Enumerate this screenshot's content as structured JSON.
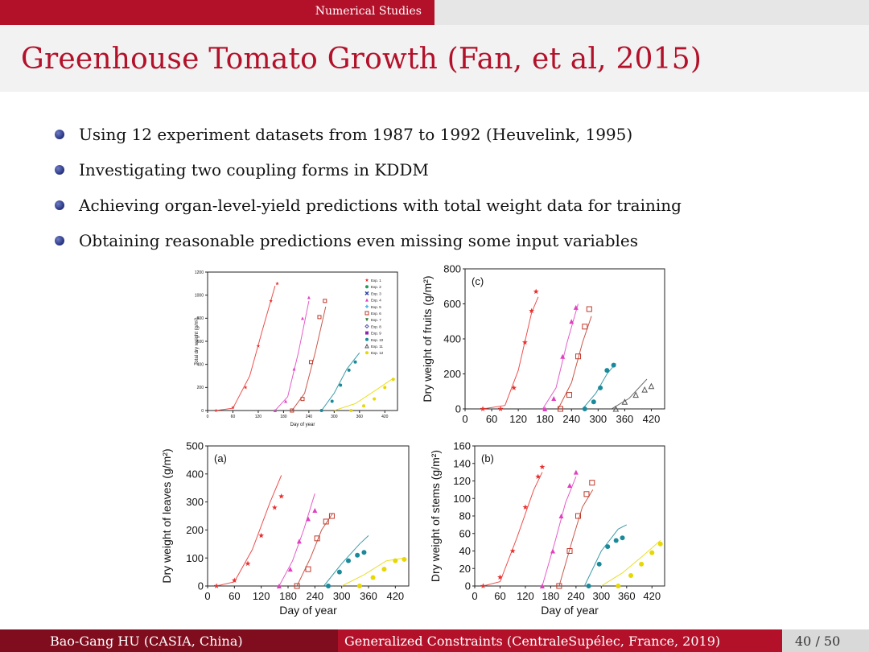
{
  "header": {
    "section": "Numerical Studies",
    "title": "Greenhouse Tomato Growth (Fan, et al, 2015)"
  },
  "bullets": [
    "Using 12 experiment datasets from 1987 to 1992 (Heuvelink, 1995)",
    "Investigating two coupling forms in KDDM",
    "Achieving organ-level-yield predictions with total weight data for training",
    "Obtaining reasonable predictions even missing some input variables"
  ],
  "footer": {
    "author": "Bao-Gang HU (CASIA, China)",
    "talk": "Generalized Constraints (CentraleSupélec, France, 2019)",
    "page": "40 / 50"
  },
  "colors": {
    "accent": "#b3112a",
    "accent_dark": "#7f0d1e"
  },
  "chart_data": [
    {
      "type": "scatter",
      "panel_label": "",
      "xlabel": "Day of year",
      "ylabel": "Total dry weight (g/m²)",
      "xlim": [
        0,
        450
      ],
      "ylim": [
        0,
        1200
      ],
      "xticks": [
        0,
        60,
        120,
        180,
        240,
        300,
        360,
        420
      ],
      "yticks": [
        0,
        200,
        400,
        600,
        800,
        1000,
        1200
      ],
      "legend": [
        "Exp. 1",
        "Exp. 2",
        "Exp. 3",
        "Exp. 4",
        "Exp. 5",
        "Exp. 6",
        "Exp. 7",
        "Exp. 8",
        "Exp. 9",
        "Exp. 10",
        "Exp. 11",
        "Exp. 12"
      ],
      "legend_position": "top-right",
      "series": [
        {
          "name": "Exp. 1",
          "points": [
            [
              20,
              0
            ],
            [
              60,
              25
            ],
            [
              90,
              200
            ],
            [
              120,
              560
            ],
            [
              150,
              950
            ],
            [
              165,
              1100
            ]
          ],
          "curve": [
            [
              20,
              0
            ],
            [
              60,
              20
            ],
            [
              100,
              300
            ],
            [
              130,
              700
            ],
            [
              160,
              1080
            ]
          ]
        },
        {
          "name": "Exp. 4",
          "points": [
            [
              160,
              0
            ],
            [
              185,
              80
            ],
            [
              205,
              360
            ],
            [
              225,
              800
            ],
            [
              240,
              980
            ]
          ],
          "curve": [
            [
              160,
              0
            ],
            [
              190,
              120
            ],
            [
              215,
              500
            ],
            [
              240,
              950
            ]
          ]
        },
        {
          "name": "Exp. 6",
          "points": [
            [
              200,
              0
            ],
            [
              225,
              100
            ],
            [
              245,
              420
            ],
            [
              265,
              810
            ],
            [
              278,
              950
            ]
          ],
          "curve": [
            [
              200,
              0
            ],
            [
              230,
              150
            ],
            [
              255,
              500
            ],
            [
              280,
              900
            ]
          ]
        },
        {
          "name": "Exp. 10",
          "points": [
            [
              270,
              0
            ],
            [
              295,
              80
            ],
            [
              315,
              220
            ],
            [
              335,
              350
            ],
            [
              350,
              420
            ]
          ],
          "curve": [
            [
              270,
              0
            ],
            [
              300,
              150
            ],
            [
              330,
              360
            ],
            [
              360,
              500
            ]
          ]
        },
        {
          "name": "Exp. 12",
          "points": [
            [
              340,
              0
            ],
            [
              370,
              40
            ],
            [
              395,
              100
            ],
            [
              420,
              200
            ],
            [
              440,
              270
            ]
          ],
          "curve": [
            [
              300,
              0
            ],
            [
              350,
              60
            ],
            [
              400,
              180
            ],
            [
              440,
              280
            ]
          ]
        }
      ]
    },
    {
      "type": "scatter",
      "panel_label": "(c)",
      "xlabel": "",
      "ylabel": "Dry weight of fruits (g/m²)",
      "xlim": [
        0,
        450
      ],
      "ylim": [
        0,
        800
      ],
      "xticks": [
        0,
        60,
        120,
        180,
        240,
        300,
        360,
        420
      ],
      "yticks": [
        0,
        200,
        400,
        600,
        800
      ],
      "series": [
        {
          "name": "Exp. 1",
          "points": [
            [
              40,
              0
            ],
            [
              80,
              0
            ],
            [
              110,
              120
            ],
            [
              135,
              380
            ],
            [
              150,
              560
            ],
            [
              160,
              670
            ]
          ],
          "curve": [
            [
              40,
              0
            ],
            [
              90,
              20
            ],
            [
              120,
              220
            ],
            [
              150,
              550
            ],
            [
              165,
              640
            ]
          ]
        },
        {
          "name": "Exp. 4",
          "points": [
            [
              180,
              0
            ],
            [
              200,
              60
            ],
            [
              220,
              300
            ],
            [
              240,
              500
            ],
            [
              250,
              580
            ]
          ],
          "curve": [
            [
              175,
              0
            ],
            [
              205,
              120
            ],
            [
              230,
              380
            ],
            [
              255,
              600
            ]
          ]
        },
        {
          "name": "Exp. 6",
          "points": [
            [
              215,
              0
            ],
            [
              235,
              80
            ],
            [
              255,
              300
            ],
            [
              270,
              470
            ],
            [
              280,
              570
            ]
          ],
          "curve": [
            [
              210,
              0
            ],
            [
              240,
              150
            ],
            [
              265,
              380
            ],
            [
              285,
              530
            ]
          ]
        },
        {
          "name": "Exp. 10",
          "points": [
            [
              270,
              0
            ],
            [
              290,
              40
            ],
            [
              305,
              120
            ],
            [
              320,
              220
            ],
            [
              335,
              250
            ]
          ],
          "curve": [
            [
              265,
              0
            ],
            [
              295,
              90
            ],
            [
              320,
              200
            ],
            [
              340,
              260
            ]
          ]
        },
        {
          "name": "Exp. 11",
          "points": [
            [
              340,
              0
            ],
            [
              360,
              40
            ],
            [
              385,
              80
            ],
            [
              405,
              110
            ],
            [
              420,
              130
            ]
          ],
          "curve": [
            [
              330,
              0
            ],
            [
              370,
              60
            ],
            [
              410,
              170
            ]
          ]
        }
      ]
    },
    {
      "type": "scatter",
      "panel_label": "(a)",
      "xlabel": "Day of year",
      "ylabel": "Dry weight of leaves (g/m²)",
      "xlim": [
        0,
        450
      ],
      "ylim": [
        0,
        500
      ],
      "xticks": [
        0,
        60,
        120,
        180,
        240,
        300,
        360,
        420
      ],
      "yticks": [
        0,
        100,
        200,
        300,
        400,
        500
      ],
      "series": [
        {
          "name": "Exp. 1",
          "points": [
            [
              20,
              0
            ],
            [
              60,
              20
            ],
            [
              90,
              80
            ],
            [
              120,
              180
            ],
            [
              150,
              280
            ],
            [
              165,
              320
            ]
          ],
          "curve": [
            [
              20,
              0
            ],
            [
              60,
              15
            ],
            [
              100,
              130
            ],
            [
              140,
              300
            ],
            [
              165,
              395
            ]
          ]
        },
        {
          "name": "Exp. 4",
          "points": [
            [
              160,
              0
            ],
            [
              185,
              60
            ],
            [
              205,
              160
            ],
            [
              225,
              240
            ],
            [
              240,
              270
            ]
          ],
          "curve": [
            [
              160,
              0
            ],
            [
              190,
              90
            ],
            [
              215,
              200
            ],
            [
              240,
              330
            ]
          ]
        },
        {
          "name": "Exp. 6",
          "points": [
            [
              200,
              0
            ],
            [
              225,
              60
            ],
            [
              245,
              170
            ],
            [
              265,
              230
            ],
            [
              278,
              250
            ]
          ],
          "curve": [
            [
              200,
              0
            ],
            [
              230,
              100
            ],
            [
              255,
              200
            ],
            [
              280,
              260
            ]
          ]
        },
        {
          "name": "Exp. 10",
          "points": [
            [
              270,
              0
            ],
            [
              295,
              50
            ],
            [
              315,
              90
            ],
            [
              335,
              110
            ],
            [
              350,
              120
            ]
          ],
          "curve": [
            [
              260,
              0
            ],
            [
              300,
              80
            ],
            [
              340,
              150
            ],
            [
              360,
              180
            ]
          ]
        },
        {
          "name": "Exp. 12",
          "points": [
            [
              340,
              0
            ],
            [
              370,
              30
            ],
            [
              395,
              60
            ],
            [
              420,
              90
            ],
            [
              440,
              95
            ]
          ],
          "curve": [
            [
              300,
              0
            ],
            [
              350,
              40
            ],
            [
              400,
              90
            ],
            [
              440,
              100
            ]
          ]
        }
      ]
    },
    {
      "type": "scatter",
      "panel_label": "(b)",
      "xlabel": "Day of year",
      "ylabel": "Dry weight of stems (g/m²)",
      "xlim": [
        0,
        450
      ],
      "ylim": [
        0,
        160
      ],
      "xticks": [
        0,
        60,
        120,
        180,
        240,
        300,
        360,
        420
      ],
      "yticks": [
        0,
        20,
        40,
        60,
        80,
        100,
        120,
        140,
        160
      ],
      "series": [
        {
          "name": "Exp. 1",
          "points": [
            [
              20,
              0
            ],
            [
              60,
              10
            ],
            [
              90,
              40
            ],
            [
              120,
              90
            ],
            [
              150,
              125
            ],
            [
              160,
              136
            ]
          ],
          "curve": [
            [
              20,
              0
            ],
            [
              60,
              5
            ],
            [
              100,
              55
            ],
            [
              140,
              110
            ],
            [
              160,
              130
            ]
          ]
        },
        {
          "name": "Exp. 4",
          "points": [
            [
              160,
              0
            ],
            [
              185,
              40
            ],
            [
              205,
              80
            ],
            [
              225,
              115
            ],
            [
              240,
              130
            ]
          ],
          "curve": [
            [
              160,
              0
            ],
            [
              190,
              50
            ],
            [
              215,
              95
            ],
            [
              240,
              125
            ]
          ]
        },
        {
          "name": "Exp. 6",
          "points": [
            [
              200,
              0
            ],
            [
              225,
              40
            ],
            [
              245,
              80
            ],
            [
              265,
              105
            ],
            [
              278,
              118
            ]
          ],
          "curve": [
            [
              200,
              0
            ],
            [
              230,
              50
            ],
            [
              255,
              90
            ],
            [
              280,
              110
            ]
          ]
        },
        {
          "name": "Exp. 10",
          "points": [
            [
              270,
              0
            ],
            [
              295,
              25
            ],
            [
              315,
              45
            ],
            [
              335,
              52
            ],
            [
              350,
              55
            ]
          ],
          "curve": [
            [
              260,
              0
            ],
            [
              300,
              40
            ],
            [
              340,
              65
            ],
            [
              360,
              70
            ]
          ]
        },
        {
          "name": "Exp. 12",
          "points": [
            [
              340,
              0
            ],
            [
              370,
              12
            ],
            [
              395,
              25
            ],
            [
              420,
              38
            ],
            [
              440,
              48
            ]
          ],
          "curve": [
            [
              300,
              0
            ],
            [
              350,
              15
            ],
            [
              400,
              35
            ],
            [
              440,
              52
            ]
          ]
        }
      ]
    }
  ]
}
